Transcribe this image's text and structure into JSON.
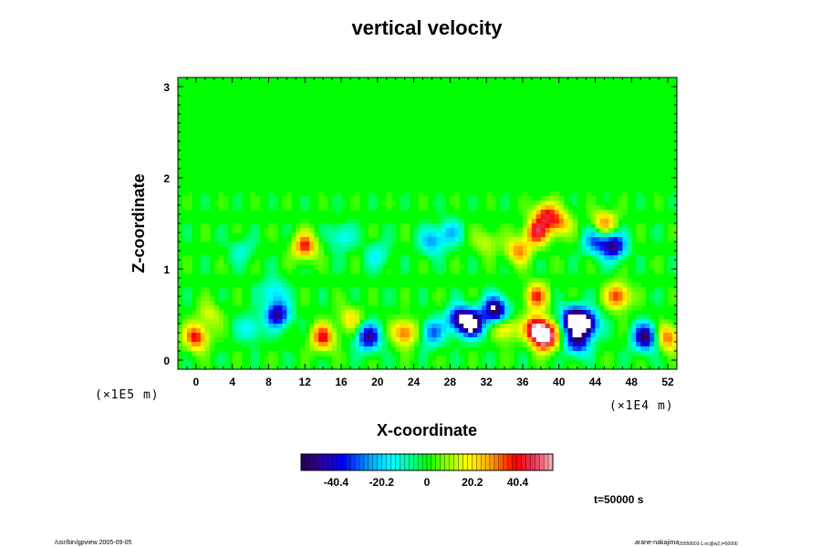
{
  "chart_data": {
    "type": "heatmap",
    "title": "vertical velocity",
    "xlabel": "X-coordinate",
    "ylabel": "Z-coordinate",
    "x_scale_label": "(×1E4 m)",
    "y_scale_label": "(×1E5 m)",
    "xlim": [
      -2,
      53
    ],
    "ylim": [
      -0.1,
      3.1
    ],
    "x_ticks": [
      "0",
      "4",
      "8",
      "12",
      "16",
      "20",
      "24",
      "28",
      "32",
      "36",
      "40",
      "44",
      "48",
      "52"
    ],
    "y_ticks": [
      "0",
      "1",
      "2",
      "3"
    ],
    "colorbar": {
      "range": [
        -56,
        56
      ],
      "tick_labels": [
        "-40.4",
        "-20.2",
        "0",
        "20.2",
        "40.4"
      ]
    },
    "time_label": "t=50000 s",
    "features": [
      {
        "x": 0,
        "z": 0.25,
        "value": 40
      },
      {
        "x": 1.5,
        "z": 0.5,
        "value": 15
      },
      {
        "x": 6,
        "z": 0.35,
        "value": -18
      },
      {
        "x": 9,
        "z": 0.5,
        "value": -48
      },
      {
        "x": 8.5,
        "z": 0.75,
        "value": -20
      },
      {
        "x": 12,
        "z": 1.25,
        "value": 38
      },
      {
        "x": 14,
        "z": 0.25,
        "value": 40
      },
      {
        "x": 17,
        "z": 0.45,
        "value": 20
      },
      {
        "x": 19,
        "z": 0.25,
        "value": -48
      },
      {
        "x": 23,
        "z": 0.3,
        "value": 36
      },
      {
        "x": 26,
        "z": 0.3,
        "value": -30
      },
      {
        "x": 29,
        "z": 0.45,
        "value": -48
      },
      {
        "x": 30.5,
        "z": 0.4,
        "value": -60
      },
      {
        "x": 33,
        "z": 0.55,
        "value": -60
      },
      {
        "x": 34,
        "z": 0.35,
        "value": 25
      },
      {
        "x": 37.5,
        "z": 0.35,
        "value": 50
      },
      {
        "x": 38.5,
        "z": 0.25,
        "value": 62
      },
      {
        "x": 37.5,
        "z": 0.7,
        "value": 35
      },
      {
        "x": 37.5,
        "z": 1.4,
        "value": 40
      },
      {
        "x": 38.5,
        "z": 1.6,
        "value": 35
      },
      {
        "x": 35.5,
        "z": 1.2,
        "value": 30
      },
      {
        "x": 41.5,
        "z": 0.45,
        "value": -58
      },
      {
        "x": 43,
        "z": 0.4,
        "value": -60
      },
      {
        "x": 42,
        "z": 0.2,
        "value": -45
      },
      {
        "x": 44,
        "z": 1.3,
        "value": -30
      },
      {
        "x": 46,
        "z": 1.25,
        "value": -50
      },
      {
        "x": 45,
        "z": 1.5,
        "value": 30
      },
      {
        "x": 46.5,
        "z": 0.7,
        "value": 38
      },
      {
        "x": 49.5,
        "z": 0.25,
        "value": -55
      },
      {
        "x": 52,
        "z": 0.25,
        "value": 35
      },
      {
        "x": 40,
        "z": 1.5,
        "value": 30
      },
      {
        "x": 20,
        "z": 1.15,
        "value": -15
      },
      {
        "x": 26,
        "z": 1.3,
        "value": -25
      },
      {
        "x": 28,
        "z": 1.4,
        "value": -20
      },
      {
        "x": 16,
        "z": 1.35,
        "value": -18
      },
      {
        "x": 5,
        "z": 1.2,
        "value": -12
      },
      {
        "x": 32,
        "z": 1.3,
        "value": 15
      }
    ],
    "grid": false
  },
  "footer": {
    "left": "/usr/bin/gpview 2005-09-05",
    "right_main": "arane-nakajima",
    "right_sub": "20050603-1.nc@w2,t=50000"
  }
}
